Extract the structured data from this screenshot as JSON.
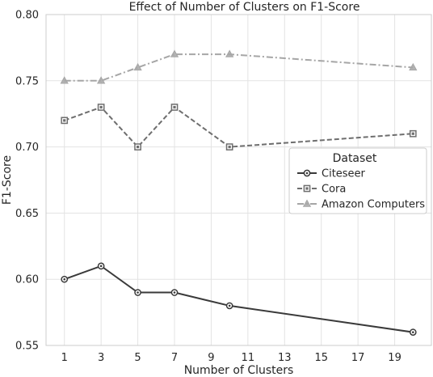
{
  "chart_data": {
    "type": "line",
    "title": "Effect of Number of Clusters on F1-Score",
    "xlabel": "Number of Clusters",
    "ylabel": "F1-Score",
    "xlim": [
      0,
      21
    ],
    "ylim": [
      0.55,
      0.8
    ],
    "xticks": [
      1,
      3,
      5,
      7,
      9,
      11,
      13,
      15,
      17,
      19
    ],
    "yticks": [
      0.55,
      0.6,
      0.65,
      0.7,
      0.75,
      0.8
    ],
    "ytick_labels": [
      "0.55",
      "0.60",
      "0.65",
      "0.70",
      "0.75",
      "0.80"
    ],
    "grid": true,
    "legend": {
      "title": "Dataset",
      "placement": "center-right"
    },
    "x": [
      1,
      3,
      5,
      7,
      10,
      20
    ],
    "series": [
      {
        "name": "Citeseer",
        "values": [
          0.6,
          0.61,
          0.59,
          0.59,
          0.58,
          0.56
        ],
        "color": "#3a3a3a",
        "dash": "solid",
        "marker": "circle"
      },
      {
        "name": "Cora",
        "values": [
          0.72,
          0.73,
          0.7,
          0.73,
          0.7,
          0.71
        ],
        "color": "#6e6e6e",
        "dash": "dashed",
        "marker": "square"
      },
      {
        "name": "Amazon Computers",
        "values": [
          0.75,
          0.75,
          0.76,
          0.77,
          0.77,
          0.76
        ],
        "color": "#a6a6a6",
        "dash": "dashdot",
        "marker": "triangle"
      }
    ]
  }
}
